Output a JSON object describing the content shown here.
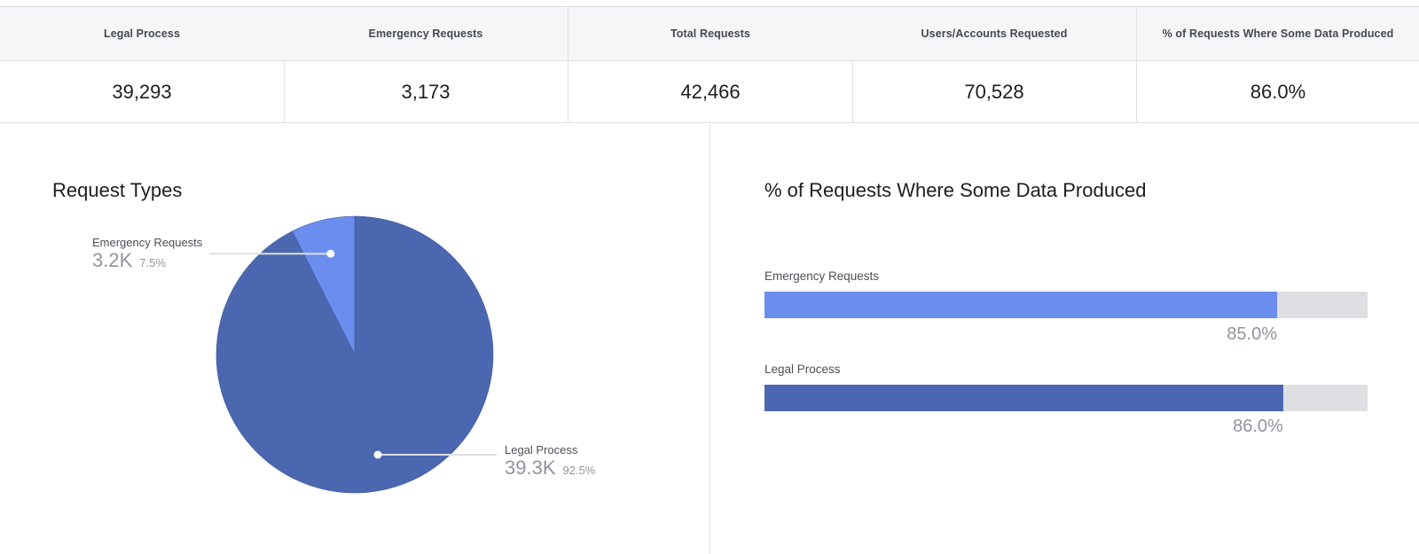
{
  "stats": [
    {
      "header": "Legal Process",
      "value": "39,293"
    },
    {
      "header": "Emergency Requests",
      "value": "3,173"
    },
    {
      "header": "Total Requests",
      "value": "42,466"
    },
    {
      "header": "Users/Accounts Requested",
      "value": "70,528"
    },
    {
      "header": "% of Requests Where Some Data Produced",
      "value": "86.0%"
    }
  ],
  "chart_data": [
    {
      "type": "pie",
      "title": "Request Types",
      "slices": [
        {
          "name": "Emergency Requests",
          "value": 3173,
          "label": "3.2K",
          "percent_label": "7.5%",
          "color": "#6b8eee"
        },
        {
          "name": "Legal Process",
          "value": 39293,
          "label": "39.3K",
          "percent_label": "92.5%",
          "color": "#4a67b0"
        }
      ]
    },
    {
      "type": "bar",
      "orientation": "horizontal",
      "title": "% of Requests Where Some Data Produced",
      "categories": [
        "Emergency Requests",
        "Legal Process"
      ],
      "values": [
        85.0,
        86.0
      ],
      "value_labels": [
        "85.0%",
        "86.0%"
      ],
      "xlim": [
        0,
        100
      ],
      "colors": [
        "#6b8eee",
        "#4a67b0"
      ],
      "track_color": "#dddfe2"
    }
  ]
}
